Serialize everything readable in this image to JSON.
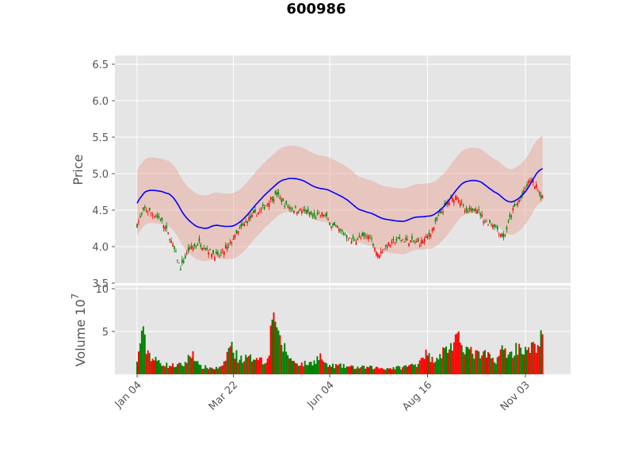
{
  "chart_data": {
    "type": "candlestick",
    "title": "600986",
    "x_tick_labels": [
      "Jan 04",
      "Mar 22",
      "Jun 04",
      "Aug 16",
      "Nov 03"
    ],
    "price_panel": {
      "ylabel": "Price",
      "ylim": [
        3.5,
        6.6
      ],
      "yticks": [
        "3.5",
        "4.0",
        "4.5",
        "5.0",
        "5.5",
        "6.0",
        "6.5"
      ],
      "bollinger_band_width": 0.45,
      "ma_color": "#0000ff",
      "band_color": "#e8a090",
      "close_anchors": [
        [
          0,
          4.3
        ],
        [
          5,
          4.52
        ],
        [
          10,
          4.45
        ],
        [
          15,
          4.38
        ],
        [
          20,
          4.18
        ],
        [
          25,
          3.9
        ],
        [
          28,
          3.7
        ],
        [
          33,
          3.95
        ],
        [
          40,
          4.05
        ],
        [
          46,
          3.95
        ],
        [
          52,
          3.86
        ],
        [
          58,
          3.98
        ],
        [
          65,
          4.2
        ],
        [
          72,
          4.38
        ],
        [
          80,
          4.5
        ],
        [
          86,
          4.65
        ],
        [
          90,
          4.72
        ],
        [
          95,
          4.58
        ],
        [
          100,
          4.52
        ],
        [
          108,
          4.48
        ],
        [
          114,
          4.4
        ],
        [
          120,
          4.45
        ],
        [
          125,
          4.3
        ],
        [
          132,
          4.2
        ],
        [
          138,
          4.08
        ],
        [
          144,
          4.12
        ],
        [
          150,
          4.15
        ],
        [
          155,
          3.88
        ],
        [
          160,
          4.0
        ],
        [
          168,
          4.1
        ],
        [
          175,
          4.08
        ],
        [
          182,
          4.05
        ],
        [
          188,
          4.15
        ],
        [
          194,
          4.4
        ],
        [
          200,
          4.6
        ],
        [
          206,
          4.7
        ],
        [
          212,
          4.45
        ],
        [
          218,
          4.55
        ],
        [
          224,
          4.35
        ],
        [
          230,
          4.3
        ],
        [
          236,
          4.12
        ],
        [
          242,
          4.5
        ],
        [
          248,
          4.7
        ],
        [
          253,
          4.92
        ],
        [
          258,
          4.8
        ],
        [
          260,
          4.7
        ]
      ]
    },
    "volume_panel": {
      "ylabel": "Volume  10",
      "ylabel_exponent": "7",
      "ylim": [
        0,
        10
      ],
      "yticks": [
        "5",
        "10"
      ],
      "volume_anchors": [
        [
          0,
          1.3
        ],
        [
          3,
          5.2
        ],
        [
          6,
          3.0
        ],
        [
          10,
          1.8
        ],
        [
          20,
          1.0
        ],
        [
          30,
          1.1
        ],
        [
          36,
          2.6
        ],
        [
          40,
          0.9
        ],
        [
          50,
          0.7
        ],
        [
          55,
          0.8
        ],
        [
          60,
          3.5
        ],
        [
          65,
          1.9
        ],
        [
          72,
          1.8
        ],
        [
          78,
          2.2
        ],
        [
          82,
          1.2
        ],
        [
          85,
          3.0
        ],
        [
          88,
          8.5
        ],
        [
          91,
          4.0
        ],
        [
          95,
          3.0
        ],
        [
          100,
          1.5
        ],
        [
          106,
          1.2
        ],
        [
          112,
          1.3
        ],
        [
          118,
          2.1
        ],
        [
          122,
          1.0
        ],
        [
          130,
          1.0
        ],
        [
          140,
          0.8
        ],
        [
          150,
          0.8
        ],
        [
          160,
          0.7
        ],
        [
          170,
          0.8
        ],
        [
          180,
          1.2
        ],
        [
          185,
          2.5
        ],
        [
          190,
          1.7
        ],
        [
          196,
          2.5
        ],
        [
          202,
          3.3
        ],
        [
          208,
          4.0
        ],
        [
          214,
          2.6
        ],
        [
          220,
          2.2
        ],
        [
          226,
          2.2
        ],
        [
          230,
          1.5
        ],
        [
          236,
          3.0
        ],
        [
          240,
          2.2
        ],
        [
          246,
          3.4
        ],
        [
          250,
          2.6
        ],
        [
          256,
          3.2
        ],
        [
          260,
          4.1
        ]
      ]
    }
  }
}
